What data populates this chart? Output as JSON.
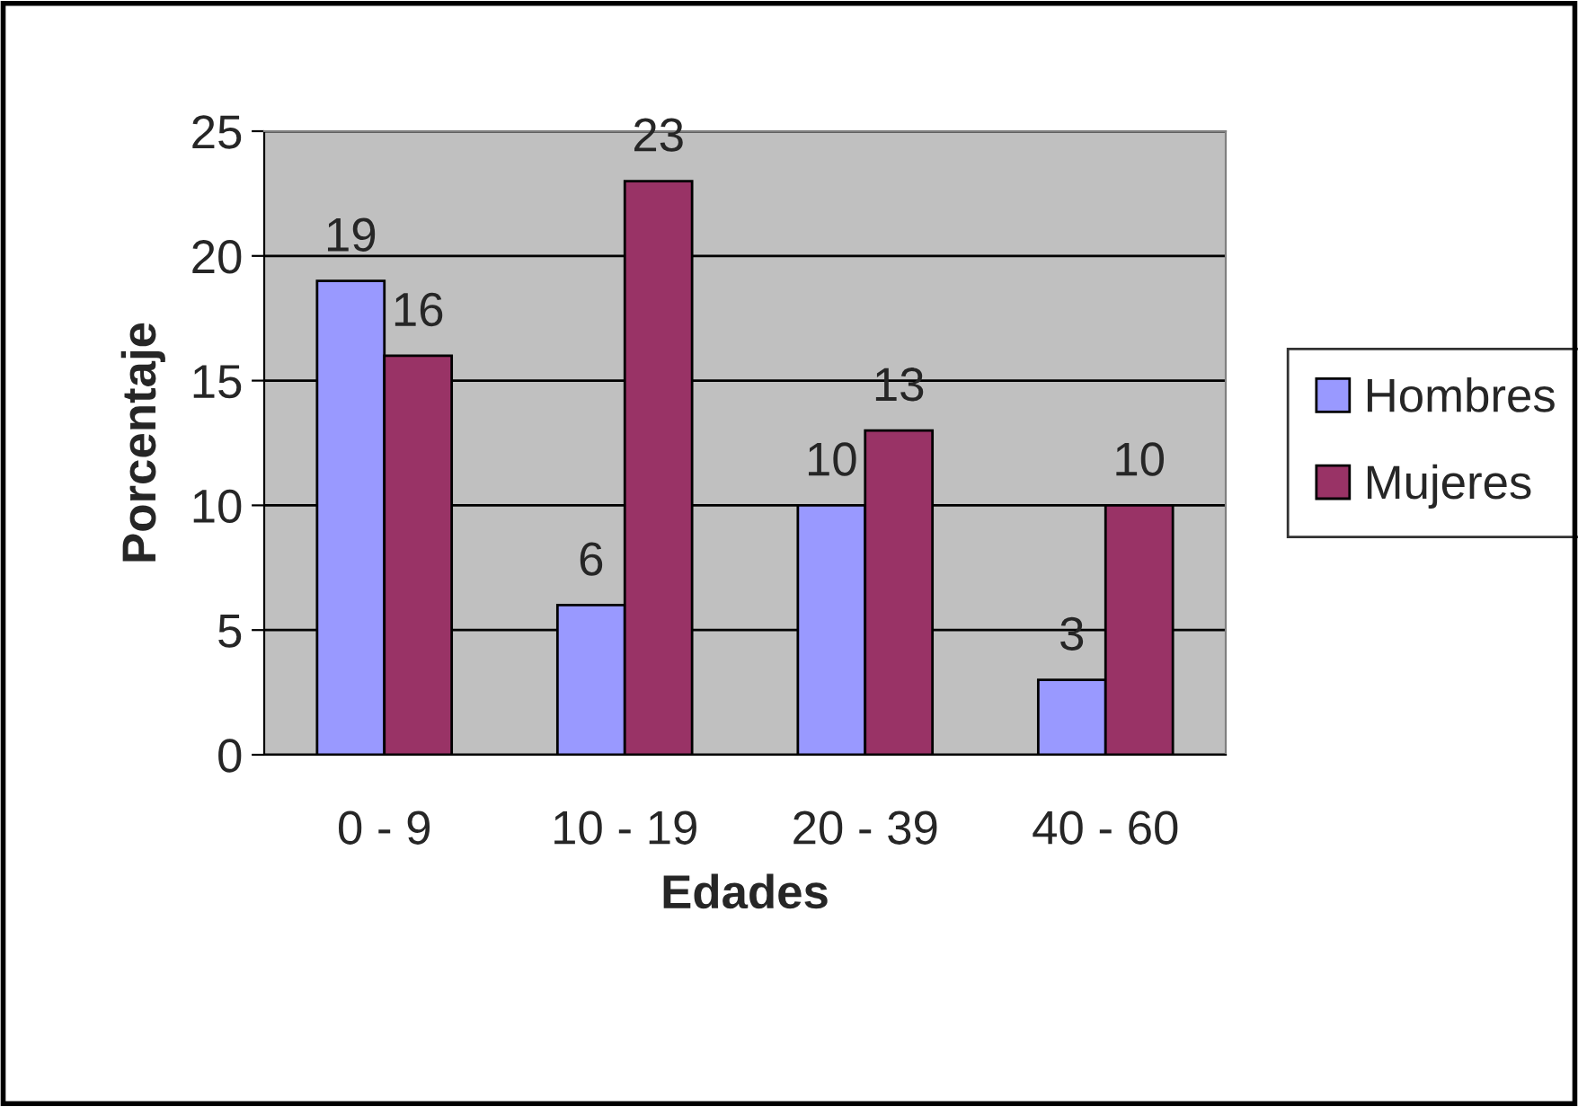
{
  "chart_data": {
    "type": "bar",
    "xlabel": "Edades",
    "ylabel": "Porcentaje",
    "categories": [
      "0 - 9",
      "10 - 19",
      "20 - 39",
      "40 - 60"
    ],
    "series": [
      {
        "name": "Hombres",
        "color": "#9999ff",
        "values": [
          19,
          6,
          10,
          3
        ]
      },
      {
        "name": "Mujeres",
        "color": "#993366",
        "values": [
          16,
          23,
          13,
          10
        ]
      }
    ],
    "ylim": [
      0,
      25
    ],
    "yticks": [
      0,
      5,
      10,
      15,
      20,
      25
    ],
    "grid": "y",
    "legend": "right",
    "data_labels": true
  }
}
